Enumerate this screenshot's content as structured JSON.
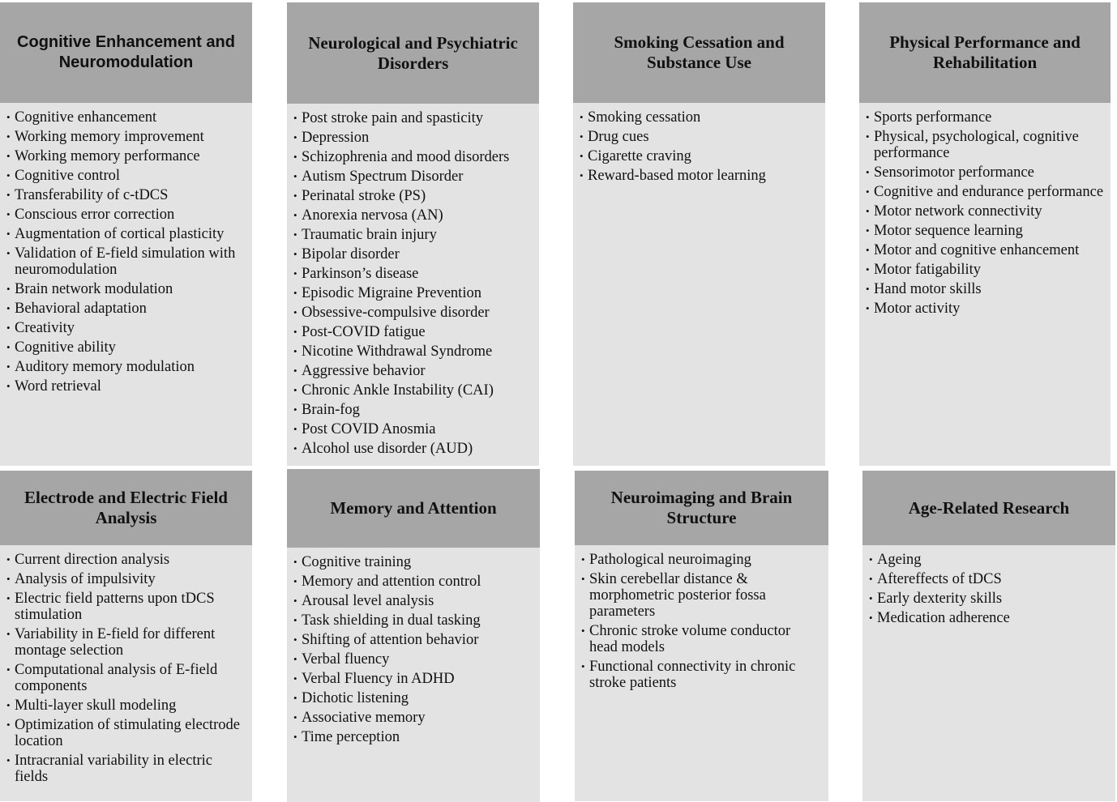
{
  "panels": [
    {
      "title": "Cognitive Enhancement and Neuromodulation",
      "items": [
        "Cognitive enhancement",
        "Working memory improvement",
        "Working memory performance",
        "Cognitive control",
        "Transferability of c-tDCS",
        "Conscious error correction",
        "Augmentation of cortical plasticity",
        "Validation of E-field simulation with neuromodulation",
        "Brain network modulation",
        "Behavioral adaptation",
        "Creativity",
        "Cognitive ability",
        "Auditory memory modulation",
        "Word retrieval"
      ]
    },
    {
      "title": "Neurological and Psychiatric Disorders",
      "items": [
        "Post stroke pain and spasticity",
        "Depression",
        "Schizophrenia and mood disorders",
        "Autism Spectrum Disorder",
        "Perinatal stroke (PS)",
        "Anorexia nervosa (AN)",
        "Traumatic brain injury",
        "Bipolar disorder",
        "Parkinson’s disease",
        "Episodic Migraine Prevention",
        "Obsessive-compulsive disorder",
        "Post-COVID fatigue",
        "Nicotine Withdrawal Syndrome",
        "Aggressive behavior",
        "Chronic Ankle Instability (CAI)",
        "Brain-fog",
        "Post COVID Anosmia",
        "Alcohol use disorder (AUD)"
      ]
    },
    {
      "title": "Smoking Cessation and Substance Use",
      "items": [
        "Smoking cessation",
        "Drug cues",
        "Cigarette craving",
        "Reward-based motor learning"
      ]
    },
    {
      "title": "Physical Performance and Rehabilitation",
      "items": [
        "Sports performance",
        "Physical, psychological, cognitive performance",
        "Sensorimotor performance",
        "Cognitive and endurance performance",
        "Motor network connectivity",
        "Motor sequence learning",
        "Motor and cognitive enhancement",
        "Motor fatigability",
        "Hand motor skills",
        "Motor activity"
      ]
    },
    {
      "title": "Electrode and Electric Field Analysis",
      "items": [
        "Current direction analysis",
        "Analysis of impulsivity",
        "Electric field patterns upon tDCS stimulation",
        "Variability in E-field for different montage selection",
        "Computational analysis of E-field components",
        "Multi-layer skull modeling",
        "Optimization of stimulating electrode location",
        "Intracranial variability in electric fields"
      ]
    },
    {
      "title": "Memory and Attention",
      "items": [
        "Cognitive training",
        "Memory and attention control",
        "Arousal level analysis",
        "Task shielding in dual tasking",
        "Shifting of attention behavior",
        "Verbal fluency",
        "Verbal Fluency in ADHD",
        "Dichotic listening",
        "Associative memory",
        "Time perception"
      ]
    },
    {
      "title": "Neuroimaging and Brain Structure",
      "items": [
        "Pathological neuroimaging",
        "Skin cerebellar distance & morphometric posterior fossa parameters",
        "Chronic stroke volume conductor head models",
        "Functional connectivity in chronic stroke patients"
      ]
    },
    {
      "title": "Age-Related Research",
      "items": [
        "Ageing",
        "Aftereffects of tDCS",
        "Early dexterity skills",
        "Medication adherence"
      ]
    }
  ]
}
